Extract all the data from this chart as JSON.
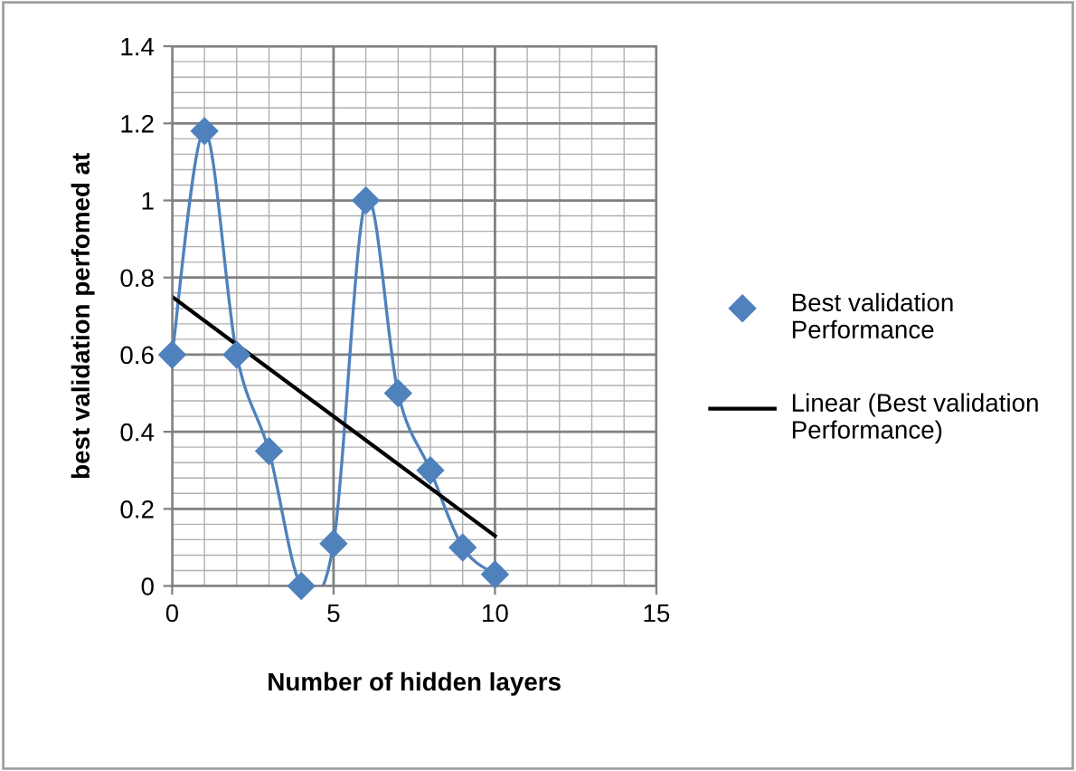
{
  "chart_data": {
    "type": "line",
    "xlabel": "Number of hidden layers",
    "ylabel": "best validation perfomed at",
    "series": [
      {
        "name": "Best validation Performance",
        "marker": "diamond",
        "color": "#4f81bd",
        "x": [
          0,
          1,
          2,
          3,
          4,
          5,
          6,
          7,
          8,
          9,
          10
        ],
        "values": [
          0.6,
          1.18,
          0.6,
          0.35,
          0,
          0.11,
          1.0,
          0.5,
          0.3,
          0.1,
          0.03
        ]
      },
      {
        "name": "Linear (Best validation Performance)",
        "marker": "none",
        "color": "#000000",
        "x": [
          0,
          10
        ],
        "values": [
          0.75,
          0.13
        ]
      }
    ],
    "xlim": [
      0,
      15
    ],
    "ylim": [
      0,
      1.4
    ],
    "xticks": [
      0,
      5,
      10,
      15
    ],
    "yticks": [
      0,
      {
        "value": 0.2,
        "label": "0.2"
      },
      {
        "value": 0.4,
        "label": "0.4"
      },
      {
        "value": 0.6,
        "label": "0.6"
      },
      {
        "value": 0.8,
        "label": "0.8"
      },
      1,
      {
        "value": 1.2,
        "label": "1.2"
      },
      {
        "value": 1.4,
        "label": "1.4"
      }
    ],
    "grid": true,
    "legend": "right"
  }
}
